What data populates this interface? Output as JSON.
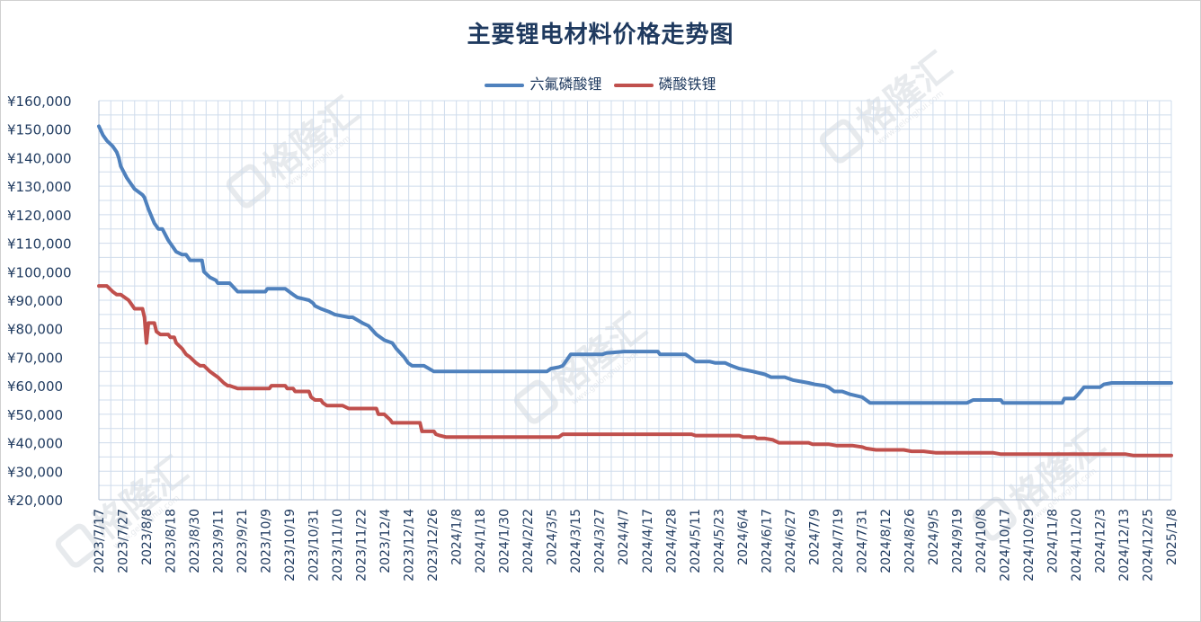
{
  "chart_data": {
    "type": "line",
    "title": "主要锂电材料价格走势图",
    "ylim": [
      20000,
      160000
    ],
    "y_ticks": [
      {
        "value": 160000,
        "label": "¥160,000"
      },
      {
        "value": 150000,
        "label": "¥150,000"
      },
      {
        "value": 140000,
        "label": "¥140,000"
      },
      {
        "value": 130000,
        "label": "¥130,000"
      },
      {
        "value": 120000,
        "label": "¥120,000"
      },
      {
        "value": 110000,
        "label": "¥110,000"
      },
      {
        "value": 100000,
        "label": "¥100,000"
      },
      {
        "value": 90000,
        "label": "¥90,000"
      },
      {
        "value": 80000,
        "label": "¥80,000"
      },
      {
        "value": 70000,
        "label": "¥70,000"
      },
      {
        "value": 60000,
        "label": "¥60,000"
      },
      {
        "value": 50000,
        "label": "¥50,000"
      },
      {
        "value": 40000,
        "label": "¥40,000"
      },
      {
        "value": 30000,
        "label": "¥30,000"
      },
      {
        "value": 20000,
        "label": "¥20,000"
      }
    ],
    "x_start": "2023-07-17",
    "x_end": "2025-01-08",
    "x_ticks": [
      "2023/7/17",
      "2023/7/27",
      "2023/8/8",
      "2023/8/18",
      "2023/8/30",
      "2023/9/11",
      "2023/9/21",
      "2023/10/9",
      "2023/10/19",
      "2023/10/31",
      "2023/11/10",
      "2023/11/22",
      "2023/12/4",
      "2023/12/14",
      "2023/12/26",
      "2024/1/8",
      "2024/1/18",
      "2024/1/30",
      "2024/2/22",
      "2024/3/5",
      "2024/3/15",
      "2024/3/27",
      "2024/4/7",
      "2024/4/17",
      "2024/4/28",
      "2024/5/11",
      "2024/5/23",
      "2024/6/4",
      "2024/6/17",
      "2024/6/27",
      "2024/7/9",
      "2024/7/19",
      "2024/7/31",
      "2024/8/12",
      "2024/8/26",
      "2024/9/5",
      "2024/9/19",
      "2024/10/8",
      "2024/10/17",
      "2024/10/29",
      "2024/11/8",
      "2024/11/20",
      "2024/12/3",
      "2024/12/13",
      "2024/12/25",
      "2025/1/8"
    ],
    "grid": true,
    "legend_position": "top",
    "series": [
      {
        "name": "六氟磷酸锂",
        "color": "#4f81bd",
        "points": [
          [
            "2023/7/17",
            151000
          ],
          [
            "2023/7/19",
            148000
          ],
          [
            "2023/7/21",
            146000
          ],
          [
            "2023/7/24",
            144000
          ],
          [
            "2023/7/26",
            142000
          ],
          [
            "2023/7/27",
            140000
          ],
          [
            "2023/7/28",
            137000
          ],
          [
            "2023/7/31",
            133000
          ],
          [
            "2023/8/2",
            131000
          ],
          [
            "2023/8/4",
            129000
          ],
          [
            "2023/8/8",
            127000
          ],
          [
            "2023/8/9",
            126000
          ],
          [
            "2023/8/11",
            122000
          ],
          [
            "2023/8/14",
            117000
          ],
          [
            "2023/8/16",
            115000
          ],
          [
            "2023/8/18",
            115000
          ],
          [
            "2023/8/21",
            111000
          ],
          [
            "2023/8/23",
            109000
          ],
          [
            "2023/8/25",
            107000
          ],
          [
            "2023/8/28",
            106000
          ],
          [
            "2023/8/30",
            106000
          ],
          [
            "2023/9/1",
            104000
          ],
          [
            "2023/9/7",
            104000
          ],
          [
            "2023/9/8",
            100000
          ],
          [
            "2023/9/11",
            98000
          ],
          [
            "2023/9/14",
            97000
          ],
          [
            "2023/9/15",
            96000
          ],
          [
            "2023/9/21",
            96000
          ],
          [
            "2023/9/25",
            93000
          ],
          [
            "2023/10/9",
            93000
          ],
          [
            "2023/10/10",
            94000
          ],
          [
            "2023/10/19",
            94000
          ],
          [
            "2023/10/20",
            93500
          ],
          [
            "2023/10/23",
            92000
          ],
          [
            "2023/10/25",
            91000
          ],
          [
            "2023/10/31",
            90000
          ],
          [
            "2023/11/2",
            89000
          ],
          [
            "2023/11/3",
            88000
          ],
          [
            "2023/11/6",
            87000
          ],
          [
            "2023/11/10",
            86000
          ],
          [
            "2023/11/13",
            85000
          ],
          [
            "2023/11/20",
            84000
          ],
          [
            "2023/11/22",
            84000
          ],
          [
            "2023/11/27",
            82000
          ],
          [
            "2023/11/30",
            81000
          ],
          [
            "2023/12/4",
            78000
          ],
          [
            "2023/12/8",
            76000
          ],
          [
            "2023/12/12",
            75000
          ],
          [
            "2023/12/14",
            73000
          ],
          [
            "2023/12/18",
            70000
          ],
          [
            "2023/12/20",
            68000
          ],
          [
            "2023/12/22",
            67000
          ],
          [
            "2023/12/28",
            67000
          ],
          [
            "2024/1/2",
            65000
          ],
          [
            "2024/1/8",
            65000
          ],
          [
            "2024/1/18",
            65000
          ],
          [
            "2024/1/30",
            65000
          ],
          [
            "2024/2/22",
            65000
          ],
          [
            "2024/2/28",
            65000
          ],
          [
            "2024/3/1",
            66000
          ],
          [
            "2024/3/5",
            66500
          ],
          [
            "2024/3/7",
            67000
          ],
          [
            "2024/3/8",
            68000
          ],
          [
            "2024/3/11",
            71000
          ],
          [
            "2024/3/15",
            71000
          ],
          [
            "2024/3/27",
            71000
          ],
          [
            "2024/3/29",
            71500
          ],
          [
            "2024/4/7",
            72000
          ],
          [
            "2024/4/17",
            72000
          ],
          [
            "2024/4/24",
            72000
          ],
          [
            "2024/4/25",
            71000
          ],
          [
            "2024/4/28",
            71000
          ],
          [
            "2024/5/8",
            71000
          ],
          [
            "2024/5/10",
            70000
          ],
          [
            "2024/5/13",
            68500
          ],
          [
            "2024/5/20",
            68500
          ],
          [
            "2024/5/23",
            68000
          ],
          [
            "2024/5/28",
            68000
          ],
          [
            "2024/5/31",
            67000
          ],
          [
            "2024/6/4",
            66000
          ],
          [
            "2024/6/11",
            65000
          ],
          [
            "2024/6/17",
            64000
          ],
          [
            "2024/6/20",
            63000
          ],
          [
            "2024/6/27",
            63000
          ],
          [
            "2024/7/1",
            62000
          ],
          [
            "2024/7/5",
            61500
          ],
          [
            "2024/7/9",
            61000
          ],
          [
            "2024/7/12",
            60500
          ],
          [
            "2024/7/17",
            60000
          ],
          [
            "2024/7/19",
            59500
          ],
          [
            "2024/7/22",
            58000
          ],
          [
            "2024/7/26",
            58000
          ],
          [
            "2024/7/30",
            57000
          ],
          [
            "2024/8/5",
            56000
          ],
          [
            "2024/8/7",
            55000
          ],
          [
            "2024/8/9",
            54000
          ],
          [
            "2024/8/12",
            54000
          ],
          [
            "2024/8/26",
            54000
          ],
          [
            "2024/9/5",
            54000
          ],
          [
            "2024/9/19",
            54000
          ],
          [
            "2024/9/27",
            54000
          ],
          [
            "2024/9/30",
            55000
          ],
          [
            "2024/10/8",
            55000
          ],
          [
            "2024/10/14",
            55000
          ],
          [
            "2024/10/15",
            54000
          ],
          [
            "2024/10/17",
            54000
          ],
          [
            "2024/10/29",
            54000
          ],
          [
            "2024/11/8",
            54000
          ],
          [
            "2024/11/14",
            54000
          ],
          [
            "2024/11/15",
            55500
          ],
          [
            "2024/11/20",
            55500
          ],
          [
            "2024/11/22",
            57000
          ],
          [
            "2024/11/25",
            59500
          ],
          [
            "2024/12/3",
            59500
          ],
          [
            "2024/12/5",
            60500
          ],
          [
            "2024/12/9",
            61000
          ],
          [
            "2024/12/13",
            61000
          ],
          [
            "2024/12/25",
            61000
          ],
          [
            "2025/1/8",
            61000
          ]
        ]
      },
      {
        "name": "磷酸铁锂",
        "color": "#c0504d",
        "points": [
          [
            "2023/7/17",
            95000
          ],
          [
            "2023/7/21",
            95000
          ],
          [
            "2023/7/24",
            93000
          ],
          [
            "2023/7/26",
            92000
          ],
          [
            "2023/7/27",
            92000
          ],
          [
            "2023/7/28",
            92000
          ],
          [
            "2023/8/1",
            90000
          ],
          [
            "2023/8/3",
            88000
          ],
          [
            "2023/8/4",
            87000
          ],
          [
            "2023/8/8",
            87000
          ],
          [
            "2023/8/9",
            84000
          ],
          [
            "2023/8/10",
            75000
          ],
          [
            "2023/8/11",
            82000
          ],
          [
            "2023/8/14",
            82000
          ],
          [
            "2023/8/15",
            79000
          ],
          [
            "2023/8/17",
            78000
          ],
          [
            "2023/8/21",
            78000
          ],
          [
            "2023/8/22",
            77000
          ],
          [
            "2023/8/24",
            77000
          ],
          [
            "2023/8/25",
            75000
          ],
          [
            "2023/8/28",
            73000
          ],
          [
            "2023/8/30",
            71000
          ],
          [
            "2023/9/1",
            70000
          ],
          [
            "2023/9/4",
            68000
          ],
          [
            "2023/9/6",
            67000
          ],
          [
            "2023/9/8",
            67000
          ],
          [
            "2023/9/11",
            65000
          ],
          [
            "2023/9/13",
            64000
          ],
          [
            "2023/9/15",
            63000
          ],
          [
            "2023/9/18",
            61000
          ],
          [
            "2023/9/20",
            60000
          ],
          [
            "2023/9/21",
            60000
          ],
          [
            "2023/9/25",
            59000
          ],
          [
            "2023/10/9",
            59000
          ],
          [
            "2023/10/11",
            59000
          ],
          [
            "2023/10/12",
            60000
          ],
          [
            "2023/10/19",
            60000
          ],
          [
            "2023/10/20",
            59000
          ],
          [
            "2023/10/23",
            59000
          ],
          [
            "2023/10/24",
            58000
          ],
          [
            "2023/10/31",
            58000
          ],
          [
            "2023/11/1",
            56000
          ],
          [
            "2023/11/3",
            55000
          ],
          [
            "2023/11/6",
            55000
          ],
          [
            "2023/11/7",
            54000
          ],
          [
            "2023/11/9",
            53000
          ],
          [
            "2023/11/10",
            53000
          ],
          [
            "2023/11/17",
            53000
          ],
          [
            "2023/11/20",
            52000
          ],
          [
            "2023/11/22",
            52000
          ],
          [
            "2023/12/4",
            52000
          ],
          [
            "2023/12/5",
            50000
          ],
          [
            "2023/12/8",
            50000
          ],
          [
            "2023/12/11",
            48000
          ],
          [
            "2023/12/12",
            47000
          ],
          [
            "2023/12/14",
            47000
          ],
          [
            "2023/12/26",
            47000
          ],
          [
            "2023/12/27",
            44000
          ],
          [
            "2023/12/28",
            44000
          ],
          [
            "2024/1/2",
            44000
          ],
          [
            "2024/1/3",
            43000
          ],
          [
            "2024/1/5",
            42500
          ],
          [
            "2024/1/8",
            42000
          ],
          [
            "2024/1/18",
            42000
          ],
          [
            "2024/1/30",
            42000
          ],
          [
            "2024/2/22",
            42000
          ],
          [
            "2024/3/4",
            42000
          ],
          [
            "2024/3/5",
            42000
          ],
          [
            "2024/3/7",
            43000
          ],
          [
            "2024/3/15",
            43000
          ],
          [
            "2024/3/27",
            43000
          ],
          [
            "2024/4/7",
            43000
          ],
          [
            "2024/4/17",
            43000
          ],
          [
            "2024/4/28",
            43000
          ],
          [
            "2024/5/11",
            43000
          ],
          [
            "2024/5/13",
            42500
          ],
          [
            "2024/5/23",
            42500
          ],
          [
            "2024/6/4",
            42500
          ],
          [
            "2024/6/6",
            42000
          ],
          [
            "2024/6/12",
            42000
          ],
          [
            "2024/6/13",
            41500
          ],
          [
            "2024/6/17",
            41500
          ],
          [
            "2024/6/21",
            41000
          ],
          [
            "2024/6/24",
            40000
          ],
          [
            "2024/6/27",
            40000
          ],
          [
            "2024/7/9",
            40000
          ],
          [
            "2024/7/11",
            39500
          ],
          [
            "2024/7/19",
            39500
          ],
          [
            "2024/7/23",
            39000
          ],
          [
            "2024/7/31",
            39000
          ],
          [
            "2024/8/5",
            38500
          ],
          [
            "2024/8/7",
            38000
          ],
          [
            "2024/8/12",
            37500
          ],
          [
            "2024/8/26",
            37500
          ],
          [
            "2024/8/30",
            37000
          ],
          [
            "2024/9/5",
            37000
          ],
          [
            "2024/9/11",
            36500
          ],
          [
            "2024/9/19",
            36500
          ],
          [
            "2024/10/8",
            36500
          ],
          [
            "2024/10/10",
            36500
          ],
          [
            "2024/10/14",
            36000
          ],
          [
            "2024/10/17",
            36000
          ],
          [
            "2024/10/29",
            36000
          ],
          [
            "2024/11/8",
            36000
          ],
          [
            "2024/11/20",
            36000
          ],
          [
            "2024/12/3",
            36000
          ],
          [
            "2024/12/13",
            36000
          ],
          [
            "2024/12/16",
            36000
          ],
          [
            "2024/12/20",
            35500
          ],
          [
            "2024/12/25",
            35500
          ],
          [
            "2025/1/8",
            35500
          ]
        ]
      }
    ]
  },
  "watermark": {
    "text": "格隆汇",
    "sub": "www.gelonghui.com"
  }
}
